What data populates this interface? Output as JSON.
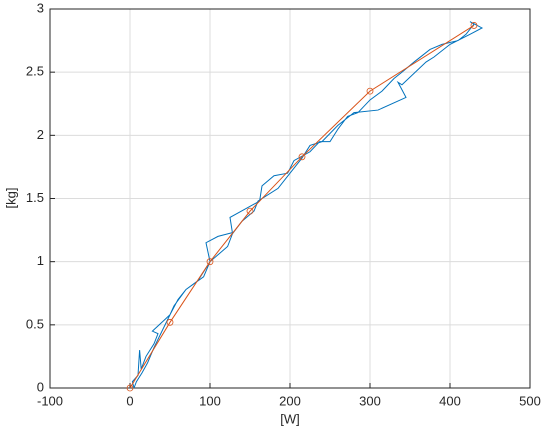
{
  "chart_data": {
    "type": "line",
    "xlabel": "[W]",
    "ylabel": "[kg]",
    "xlim": [
      -100,
      500
    ],
    "xticks": [
      -100,
      0,
      100,
      200,
      300,
      400,
      500
    ],
    "ylim": [
      0,
      3
    ],
    "yticks": [
      0,
      0.5,
      1,
      1.5,
      2,
      2.5,
      3
    ],
    "grid": true,
    "series": [
      {
        "color": "#0072bd",
        "x": [
          5,
          3,
          10,
          12,
          14,
          20,
          30,
          35,
          28,
          45,
          50,
          60,
          70,
          85,
          100,
          95,
          110,
          128,
          125,
          145,
          162,
          165,
          180,
          197,
          205,
          225,
          237,
          250,
          260,
          272,
          285,
          300,
          315,
          330,
          340,
          355,
          375,
          390,
          410,
          420,
          430,
          425,
          440,
          425,
          400,
          380,
          370,
          340,
          335,
          345,
          310,
          280,
          260,
          240,
          225,
          215,
          200,
          185,
          160,
          155,
          140,
          128,
          122,
          100,
          92,
          70,
          55,
          50,
          40,
          30,
          22,
          15,
          8,
          5
        ],
        "values": [
          0,
          0.05,
          0.1,
          0.3,
          0.15,
          0.25,
          0.35,
          0.43,
          0.45,
          0.55,
          0.58,
          0.7,
          0.78,
          0.85,
          1.0,
          1.15,
          1.2,
          1.23,
          1.35,
          1.42,
          1.48,
          1.6,
          1.68,
          1.7,
          1.8,
          1.87,
          1.95,
          1.95,
          2.05,
          2.15,
          2.18,
          2.28,
          2.35,
          2.45,
          2.5,
          2.58,
          2.68,
          2.72,
          2.75,
          2.8,
          2.88,
          2.9,
          2.85,
          2.8,
          2.72,
          2.62,
          2.58,
          2.4,
          2.42,
          2.3,
          2.2,
          2.18,
          2.08,
          1.95,
          1.92,
          1.82,
          1.7,
          1.58,
          1.48,
          1.4,
          1.32,
          1.22,
          1.12,
          1.0,
          0.88,
          0.78,
          0.65,
          0.58,
          0.45,
          0.32,
          0.2,
          0.12,
          0.05,
          0
        ]
      },
      {
        "color": "#d95319",
        "x": [
          0,
          50,
          100,
          150,
          215,
          300,
          430
        ],
        "values": [
          0,
          0.52,
          1.0,
          1.4,
          1.83,
          2.35,
          2.87
        ]
      }
    ]
  }
}
